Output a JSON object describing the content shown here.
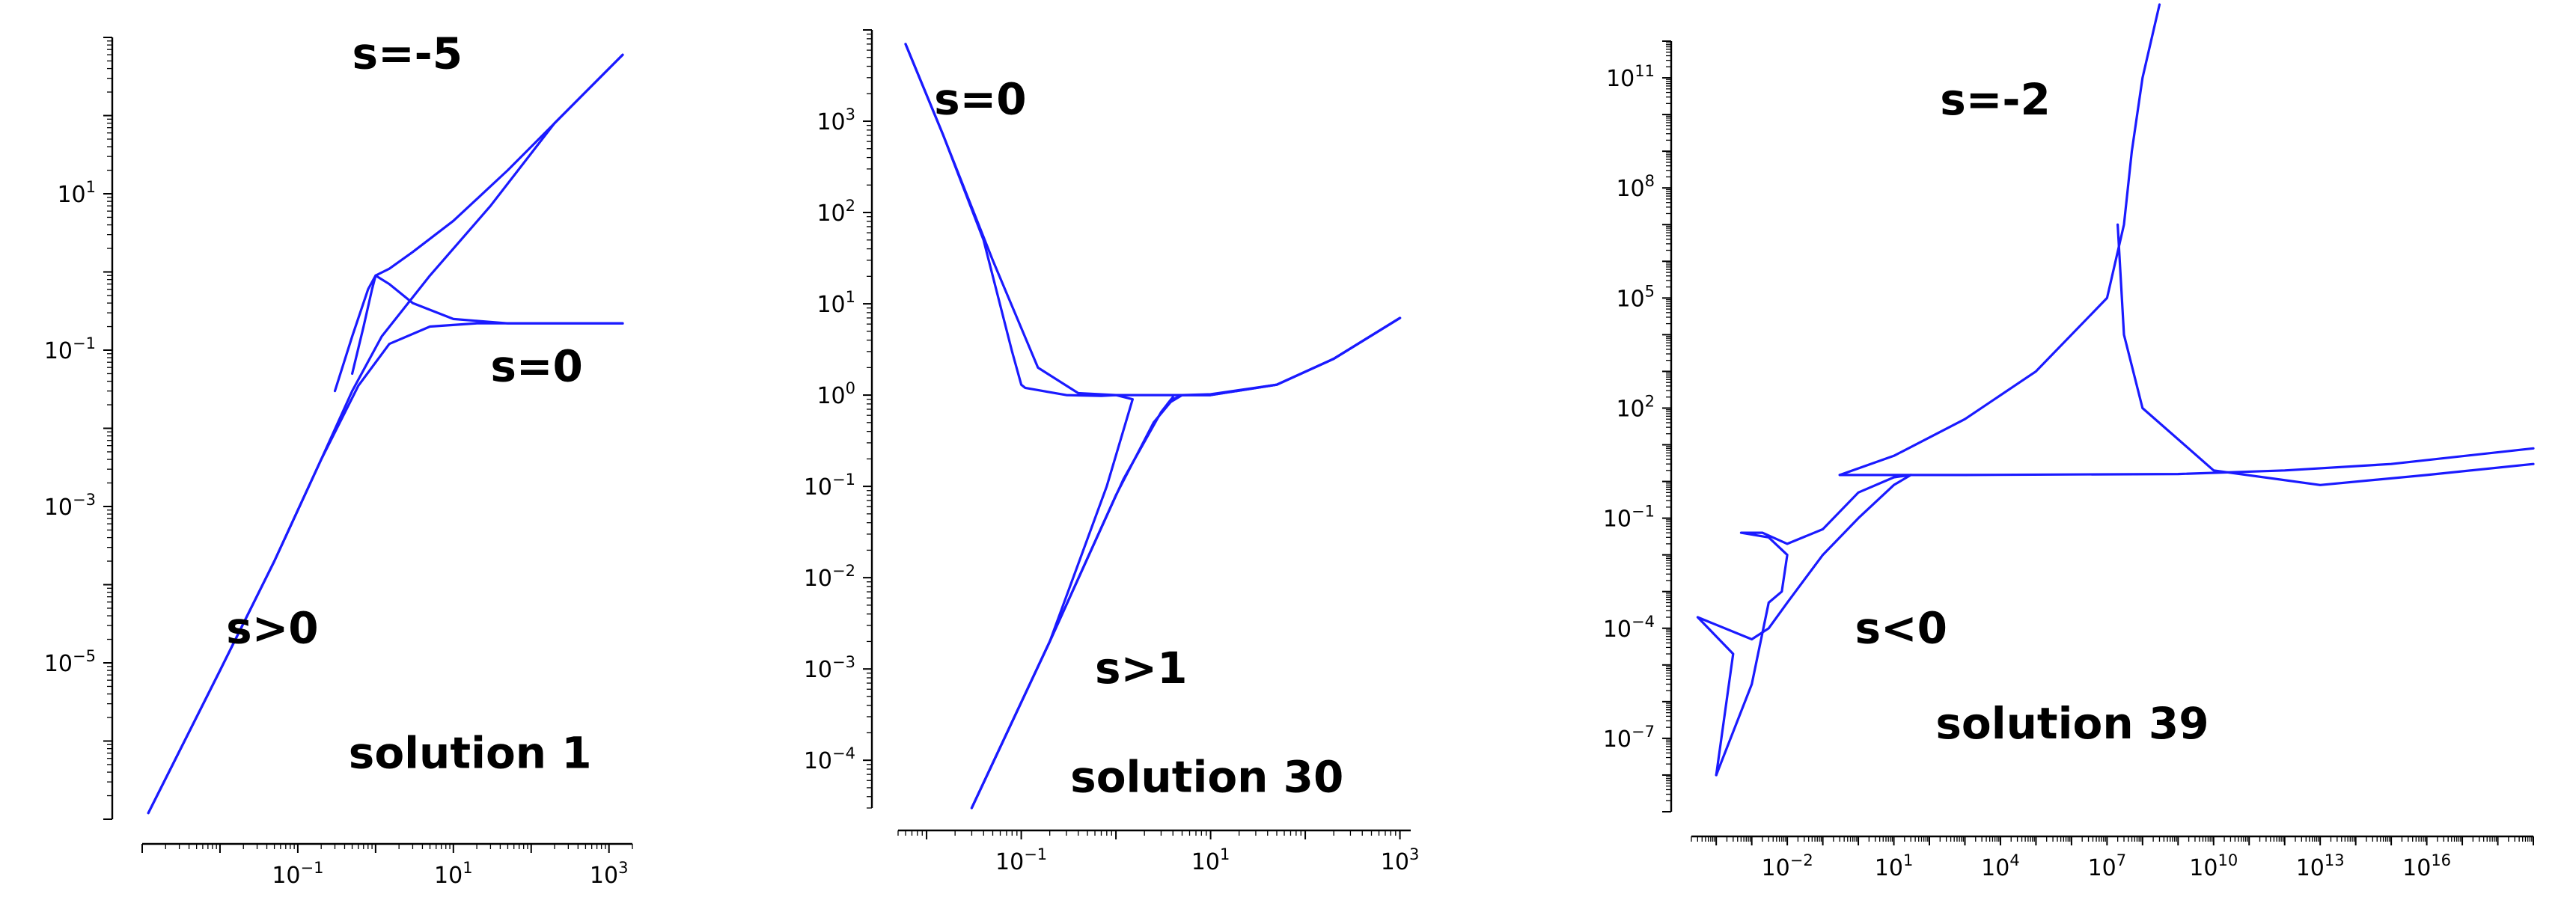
{
  "colors": {
    "curve": "#1a1aff",
    "axis": "#000000"
  },
  "chart_data": [
    {
      "type": "line",
      "xscale": "log",
      "yscale": "log",
      "xlim": [
        0.001,
        2000
      ],
      "ylim": [
        1e-07,
        1000
      ],
      "xticks": [
        {
          "base": "10",
          "exp": "−1",
          "value": 0.1
        },
        {
          "base": "10",
          "exp": "1",
          "value": 10
        },
        {
          "base": "10",
          "exp": "3",
          "value": 1000
        }
      ],
      "yticks": [
        {
          "base": "10",
          "exp": "1",
          "value": 10
        },
        {
          "base": "10",
          "exp": "−1",
          "value": 0.1
        },
        {
          "base": "10",
          "exp": "−3",
          "value": 0.001
        },
        {
          "base": "10",
          "exp": "−5",
          "value": 1e-05
        }
      ],
      "annotations": [
        {
          "text": "s=-5",
          "x": 0.5,
          "y": 400
        },
        {
          "text": "s=0",
          "x": 30,
          "y": 0.04
        },
        {
          "text": "s>0",
          "x": 0.012,
          "y": 1.8e-05
        },
        {
          "text": "solution 1",
          "x": 0.45,
          "y": 4.5e-07
        }
      ],
      "series": [
        {
          "x": [
            0.0012,
            0.01,
            0.05,
            0.2,
            0.6,
            1.5,
            5,
            20,
            100,
            400,
            1500
          ],
          "y": [
            1.2e-07,
            8e-06,
            0.0002,
            0.004,
            0.035,
            0.12,
            0.2,
            0.22,
            0.22,
            0.22,
            0.22
          ]
        },
        {
          "x": [
            0.0012,
            0.01,
            0.05,
            0.2,
            0.5,
            1.2,
            5,
            30,
            200,
            1500
          ],
          "y": [
            1.2e-07,
            8e-06,
            0.0002,
            0.004,
            0.03,
            0.15,
            0.9,
            7,
            80,
            600
          ]
        },
        {
          "x": [
            0.3,
            0.5,
            0.8,
            1,
            1.5,
            3,
            10,
            50,
            300,
            1500
          ],
          "y": [
            0.03,
            0.15,
            0.6,
            0.9,
            0.7,
            0.4,
            0.25,
            0.22,
            0.22,
            0.22
          ]
        },
        {
          "x": [
            0.5,
            0.7,
            0.9,
            1,
            1.5,
            3,
            10,
            50,
            300,
            1500
          ],
          "y": [
            0.05,
            0.2,
            0.6,
            0.9,
            1.1,
            1.8,
            4.5,
            20,
            120,
            600
          ]
        }
      ]
    },
    {
      "type": "line",
      "xscale": "log",
      "yscale": "log",
      "xlim": [
        0.005,
        1300
      ],
      "ylim": [
        3e-05,
        10000
      ],
      "xticks": [
        {
          "base": "10",
          "exp": "−1",
          "value": 0.1
        },
        {
          "base": "10",
          "exp": "1",
          "value": 10
        },
        {
          "base": "10",
          "exp": "3",
          "value": 1000
        }
      ],
      "yticks": [
        {
          "base": "10",
          "exp": "3",
          "value": 1000
        },
        {
          "base": "10",
          "exp": "2",
          "value": 100
        },
        {
          "base": "10",
          "exp": "1",
          "value": 10
        },
        {
          "base": "10",
          "exp": "0",
          "value": 1
        },
        {
          "base": "10",
          "exp": "−1",
          "value": 0.1
        },
        {
          "base": "10",
          "exp": "−2",
          "value": 0.01
        },
        {
          "base": "10",
          "exp": "−3",
          "value": 0.001
        },
        {
          "base": "10",
          "exp": "−4",
          "value": 0.0001
        }
      ],
      "annotations": [
        {
          "text": "s=0",
          "x": 0.012,
          "y": 1200
        },
        {
          "text": "s>1",
          "x": 0.6,
          "y": 0.0007
        },
        {
          "text": "solution 30",
          "x": 0.33,
          "y": 4.5e-05
        }
      ],
      "series": [
        {
          "x": [
            0.006,
            0.015,
            0.04,
            0.08,
            0.1,
            0.11,
            0.3,
            0.7,
            1,
            2,
            5,
            10,
            50,
            200,
            1000
          ],
          "y": [
            7000,
            700,
            50,
            3,
            1.3,
            1.2,
            1.0,
            0.98,
            1,
            1,
            1,
            1.02,
            1.3,
            2.5,
            7
          ]
        },
        {
          "x": [
            0.006,
            0.015,
            0.05,
            0.15,
            0.4,
            1,
            1.5,
            0.8,
            0.2,
            0.03
          ],
          "y": [
            7000,
            700,
            30,
            2,
            1.05,
            1.0,
            0.9,
            0.1,
            0.002,
            3e-05
          ]
        },
        {
          "x": [
            0.03,
            0.2,
            1,
            2.5,
            4,
            5,
            10,
            50,
            200,
            1000
          ],
          "y": [
            3e-05,
            0.002,
            0.08,
            0.5,
            0.9,
            1.0,
            1.0,
            1.3,
            2.5,
            7
          ]
        },
        {
          "x": [
            0.03,
            0.2,
            1.2,
            3,
            4,
            3.5,
            5,
            10,
            50,
            200,
            1000
          ],
          "y": [
            3e-05,
            0.002,
            0.12,
            0.65,
            0.95,
            0.8,
            1.0,
            1.0,
            1.3,
            2.5,
            7
          ]
        }
      ]
    },
    {
      "type": "line",
      "xscale": "log",
      "yscale": "log",
      "xlim": [
        2e-05,
        1e+19
      ],
      "ylim": [
        1e-09,
        1000000000000.0
      ],
      "xticks": [
        {
          "base": "10",
          "exp": "−2",
          "value": 0.01
        },
        {
          "base": "10",
          "exp": "1",
          "value": 10
        },
        {
          "base": "10",
          "exp": "4",
          "value": 10000
        },
        {
          "base": "10",
          "exp": "7",
          "value": 10000000.0
        },
        {
          "base": "10",
          "exp": "10",
          "value": 10000000000.0
        },
        {
          "base": "10",
          "exp": "13",
          "value": 10000000000000.0
        },
        {
          "base": "10",
          "exp": "16",
          "value": 1e+16
        }
      ],
      "yticks": [
        {
          "base": "10",
          "exp": "11",
          "value": 100000000000.0
        },
        {
          "base": "10",
          "exp": "8",
          "value": 100000000.0
        },
        {
          "base": "10",
          "exp": "5",
          "value": 100000
        },
        {
          "base": "10",
          "exp": "2",
          "value": 100
        },
        {
          "base": "10",
          "exp": "−1",
          "value": 0.1
        },
        {
          "base": "10",
          "exp": "−4",
          "value": 0.0001
        },
        {
          "base": "10",
          "exp": "−7",
          "value": 1e-07
        }
      ],
      "annotations": [
        {
          "text": "s=-2",
          "x": 200,
          "y": 10000000000.0
        },
        {
          "text": "s<0",
          "x": 0.8,
          "y": 4e-05
        },
        {
          "text": "solution 39",
          "x": 150,
          "y": 1e-07
        }
      ],
      "series": [
        {
          "x": [
            0.3,
            10,
            1000,
            100000,
            10000000,
            30000000,
            50000000,
            100000000,
            300000000
          ],
          "y": [
            1.5,
            5,
            50,
            1000,
            100000,
            10000000.0,
            1000000000.0,
            100000000000.0,
            10000000000000.0
          ]
        },
        {
          "x": [
            0.3,
            1000,
            1000000,
            1000000000.0,
            1000000000000.0,
            1000000000000000.0,
            1e+19
          ],
          "y": [
            1.5,
            1.5,
            1.55,
            1.6,
            2,
            3,
            8
          ]
        },
        {
          "x": [
            20000000,
            30000000,
            100000000,
            10000000000.0,
            10000000000000.0,
            1e+16,
            1e+19
          ],
          "y": [
            10000000.0,
            10000,
            100,
            2,
            0.8,
            1.5,
            3
          ]
        },
        {
          "x": [
            0.0001,
            0.001,
            0.003,
            0.007,
            0.01,
            0.003,
            0.0005,
            0.002,
            0.01,
            0.1,
            1,
            10,
            30
          ],
          "y": [
            1e-08,
            3e-06,
            0.0005,
            0.001,
            0.01,
            0.03,
            0.04,
            0.04,
            0.02,
            0.05,
            0.5,
            1.3,
            1.5
          ]
        },
        {
          "x": [
            0.0001,
            0.0003,
            3e-05,
            0.001,
            0.003,
            0.01,
            0.1,
            1,
            10,
            30
          ],
          "y": [
            1e-08,
            2e-05,
            0.0002,
            5e-05,
            0.0001,
            0.0005,
            0.01,
            0.1,
            0.8,
            1.5
          ]
        }
      ]
    }
  ]
}
